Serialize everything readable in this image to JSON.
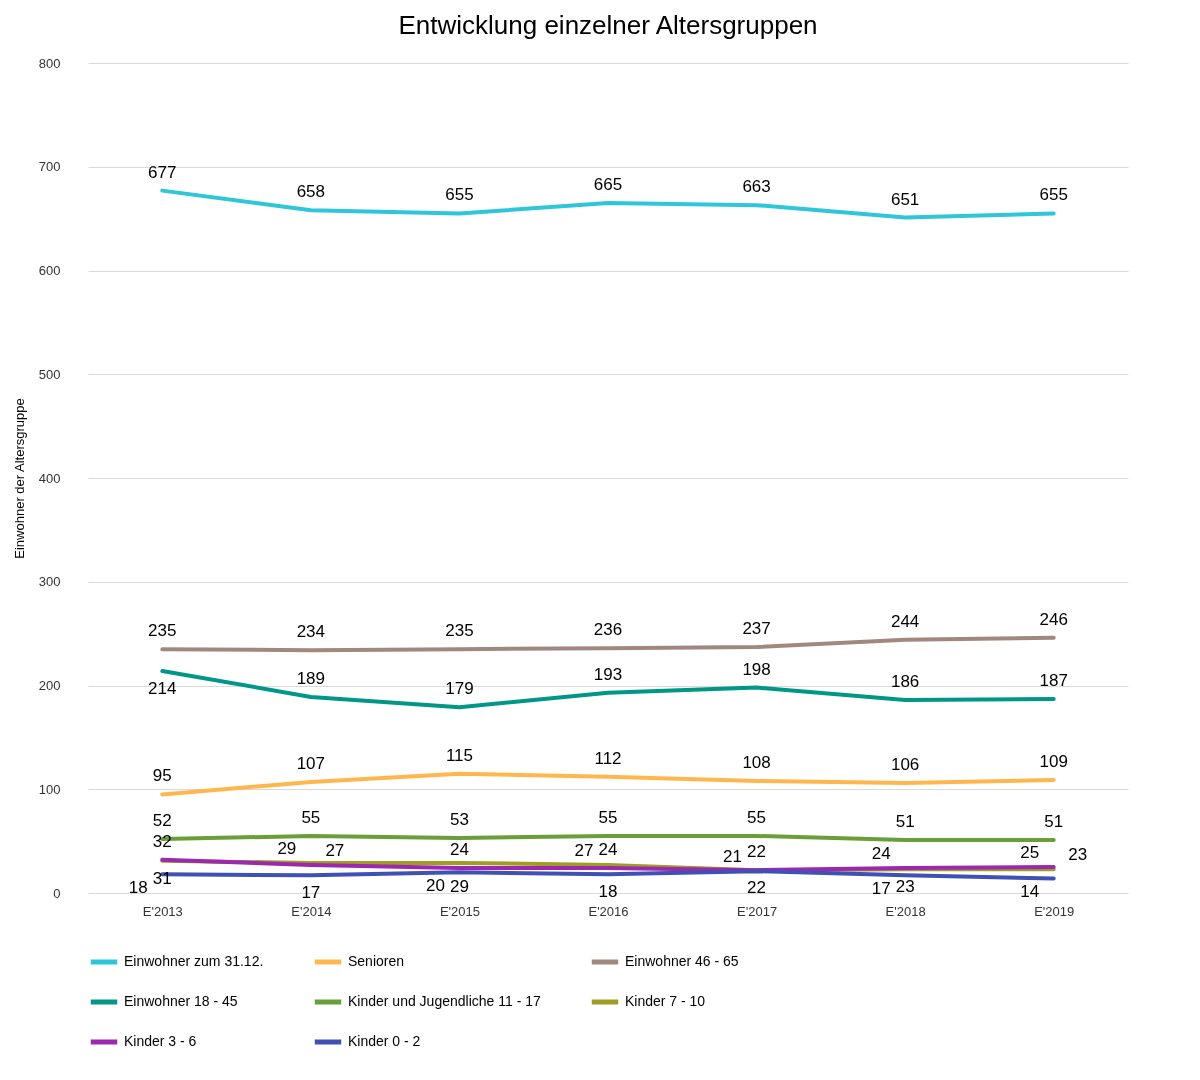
{
  "chart_data": {
    "type": "line",
    "title": "Entwicklung einzelner Altersgruppen",
    "ylabel": "Einwohner der Altersgruppe",
    "categories": [
      "E'2013",
      "E'2014",
      "E'2015",
      "E'2016",
      "E'2017",
      "E'2018",
      "E'2019"
    ],
    "ylim": [
      0,
      800
    ],
    "yticks": [
      0,
      100,
      200,
      300,
      400,
      500,
      600,
      700,
      800
    ],
    "grid": "y",
    "legend": "bottom",
    "data_labels": true,
    "marker": "none",
    "series": [
      {
        "name": "Einwohner zum 31.12.",
        "color": "#2ec6d8",
        "values": [
          677,
          658,
          655,
          665,
          663,
          651,
          655
        ]
      },
      {
        "name": "Senioren",
        "color": "#ffb74d",
        "values": [
          95,
          107,
          115,
          112,
          108,
          106,
          109
        ]
      },
      {
        "name": "Einwohner 46 - 65",
        "color": "#a1887f",
        "values": [
          235,
          234,
          235,
          236,
          237,
          244,
          246
        ]
      },
      {
        "name": "Einwohner 18 - 45",
        "color": "#009688",
        "values": [
          214,
          189,
          179,
          193,
          198,
          186,
          187
        ]
      },
      {
        "name": "Kinder und Jugendliche 11 - 17",
        "color": "#689f38",
        "values": [
          52,
          55,
          53,
          55,
          55,
          51,
          51
        ]
      },
      {
        "name": "Kinder 7 - 10",
        "color": "#9e9d24",
        "values": [
          31,
          29,
          29,
          27,
          22,
          23,
          23
        ]
      },
      {
        "name": "Kinder 3 - 6",
        "color": "#9c27b0",
        "values": [
          32,
          27,
          24,
          24,
          22,
          24,
          25
        ]
      },
      {
        "name": "Kinder 0 - 2",
        "color": "#3f51b5",
        "values": [
          18,
          17,
          20,
          18,
          21,
          17,
          14
        ]
      }
    ]
  }
}
